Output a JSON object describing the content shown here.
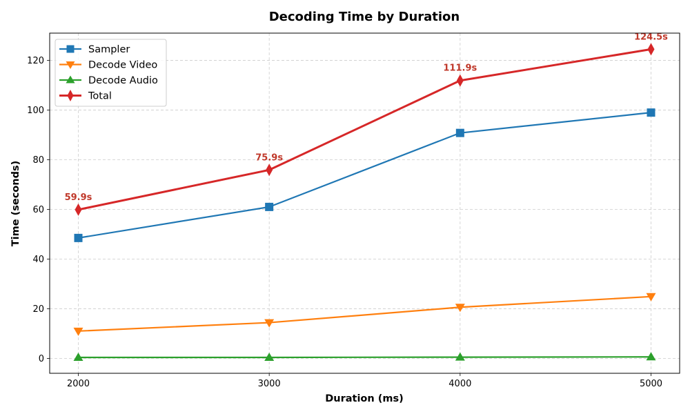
{
  "chart_data": {
    "type": "line",
    "title": "Decoding Time by Duration",
    "xlabel": "Duration (ms)",
    "ylabel": "Time (seconds)",
    "x": [
      2000,
      3000,
      4000,
      5000
    ],
    "xlim": [
      1850,
      5150
    ],
    "ylim": [
      -6,
      131
    ],
    "yticks": [
      0,
      20,
      40,
      60,
      80,
      100,
      120
    ],
    "grid": true,
    "legend_position": "top-left",
    "series": [
      {
        "name": "Sampler",
        "values": [
          48.5,
          61.0,
          90.8,
          99.0
        ],
        "color": "#1f77b4",
        "marker": "square"
      },
      {
        "name": "Decode Video",
        "values": [
          11.0,
          14.4,
          20.6,
          24.9
        ],
        "color": "#ff7f0e",
        "marker": "triangle-down"
      },
      {
        "name": "Decode Audio",
        "values": [
          0.4,
          0.4,
          0.5,
          0.6
        ],
        "color": "#2ca02c",
        "marker": "triangle-up"
      },
      {
        "name": "Total",
        "values": [
          59.9,
          75.9,
          111.9,
          124.5
        ],
        "color": "#d62728",
        "marker": "diamond"
      }
    ],
    "annotations": [
      "59.9s",
      "75.9s",
      "111.9s",
      "124.5s"
    ],
    "annotation_color": "#c0392b"
  }
}
